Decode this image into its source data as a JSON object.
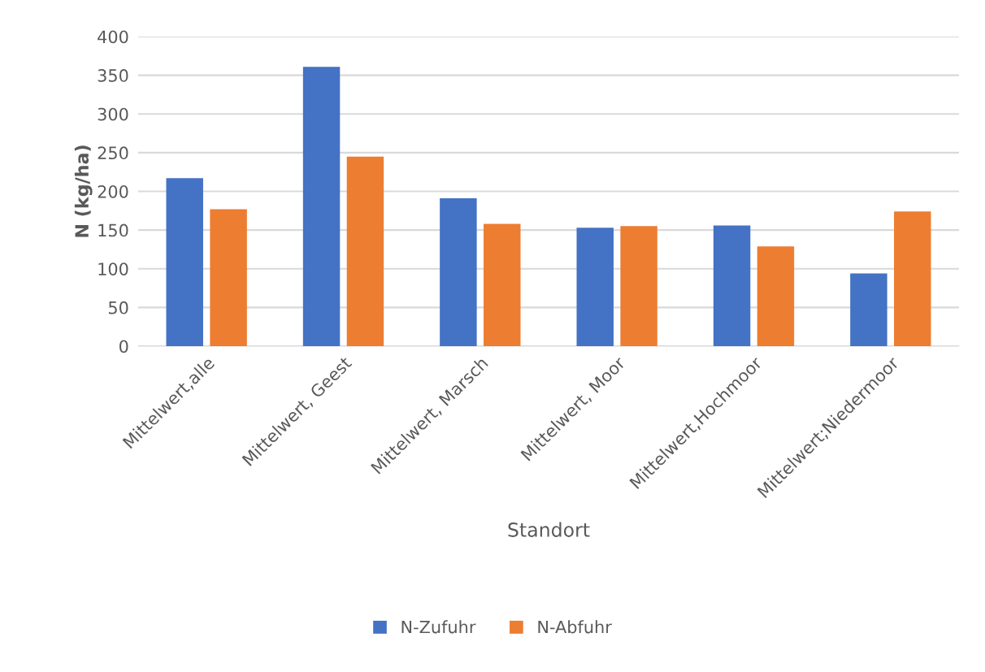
{
  "chart_data": {
    "type": "bar",
    "xlabel": "Standort",
    "ylabel": "N (kg/ha)",
    "categories": [
      "Mittelwert,alle",
      "Mittelwert, Geest",
      "Mittelwert, Marsch",
      "Mittelwert, Moor",
      "Mittelwert,Hochmoor",
      "Mittelwert;Niedermoor"
    ],
    "series": [
      {
        "name": "N-Zufuhr",
        "color": "#4472c4",
        "values": [
          217,
          361,
          191,
          153,
          156,
          94
        ]
      },
      {
        "name": "N-Abfuhr",
        "color": "#ed7d31",
        "values": [
          177,
          245,
          158,
          155,
          129,
          174
        ]
      }
    ],
    "ylim": [
      0,
      400
    ],
    "yticks": [
      0,
      50,
      100,
      150,
      200,
      250,
      300,
      350,
      400
    ],
    "grid": "y",
    "legend": "bottom"
  }
}
